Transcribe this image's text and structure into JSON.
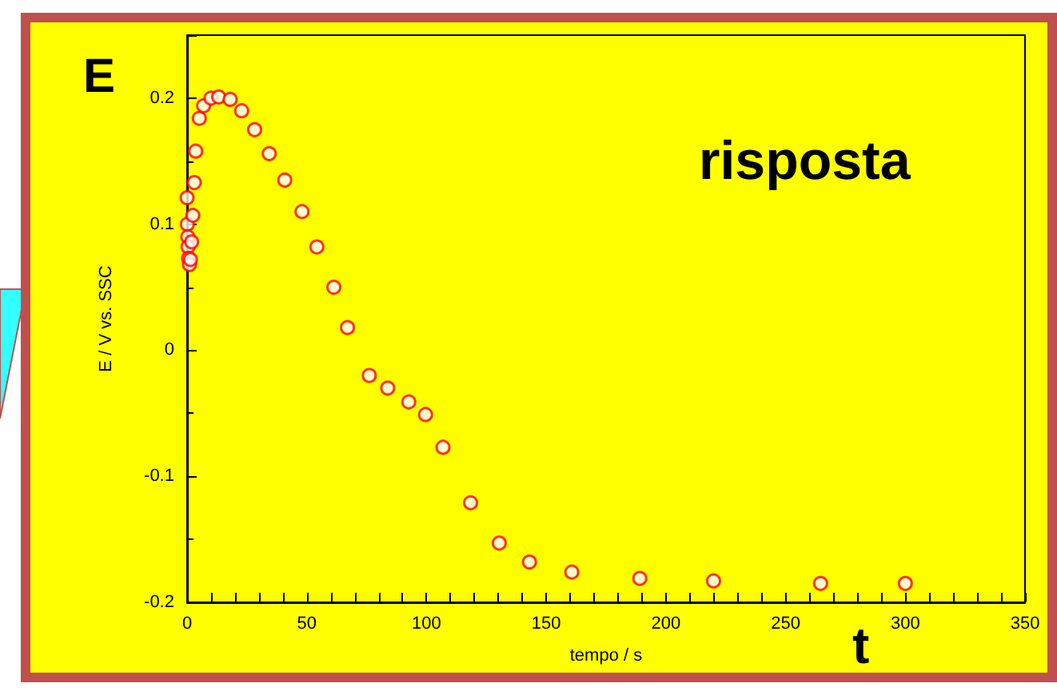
{
  "chart_data": {
    "type": "scatter",
    "xlabel": "tempo / s",
    "ylabel": "E / V vs. SSC",
    "annotations": [
      "E",
      "risposta",
      "t"
    ],
    "marker": "circle",
    "grid": false,
    "xlim": [
      0,
      350
    ],
    "xticks": [
      0,
      50,
      100,
      150,
      200,
      250,
      300,
      350
    ],
    "ylim": [
      -0.2,
      0.25
    ],
    "yticks": [
      -0.2,
      -0.1,
      0,
      0.1,
      0.2
    ],
    "series": [
      {
        "color": "#ff0000",
        "x": [
          0,
          0.1,
          0.3,
          0.4,
          0.6,
          1.0,
          1.4,
          1.9,
          2.4,
          3.0,
          3.6,
          5.1,
          6.9,
          10.0,
          13.2,
          18.0,
          22.8,
          28.2,
          34.3,
          40.8,
          48.0,
          54.2,
          61.3,
          67.0,
          76.1,
          83.8,
          92.6,
          99.6,
          106.9,
          118.4,
          130.4,
          143.0,
          160.7,
          189.1,
          219.9,
          264.6,
          300.0
        ],
        "values": [
          0.121,
          0.1,
          0.09,
          0.082,
          0.073,
          0.068,
          0.072,
          0.086,
          0.107,
          0.133,
          0.158,
          0.184,
          0.194,
          0.2,
          0.201,
          0.199,
          0.19,
          0.175,
          0.156,
          0.135,
          0.11,
          0.082,
          0.05,
          0.018,
          -0.02,
          -0.03,
          -0.041,
          -0.051,
          -0.077,
          -0.121,
          -0.153,
          -0.168,
          -0.176,
          -0.181,
          -0.183,
          -0.185,
          -0.185
        ]
      }
    ]
  }
}
